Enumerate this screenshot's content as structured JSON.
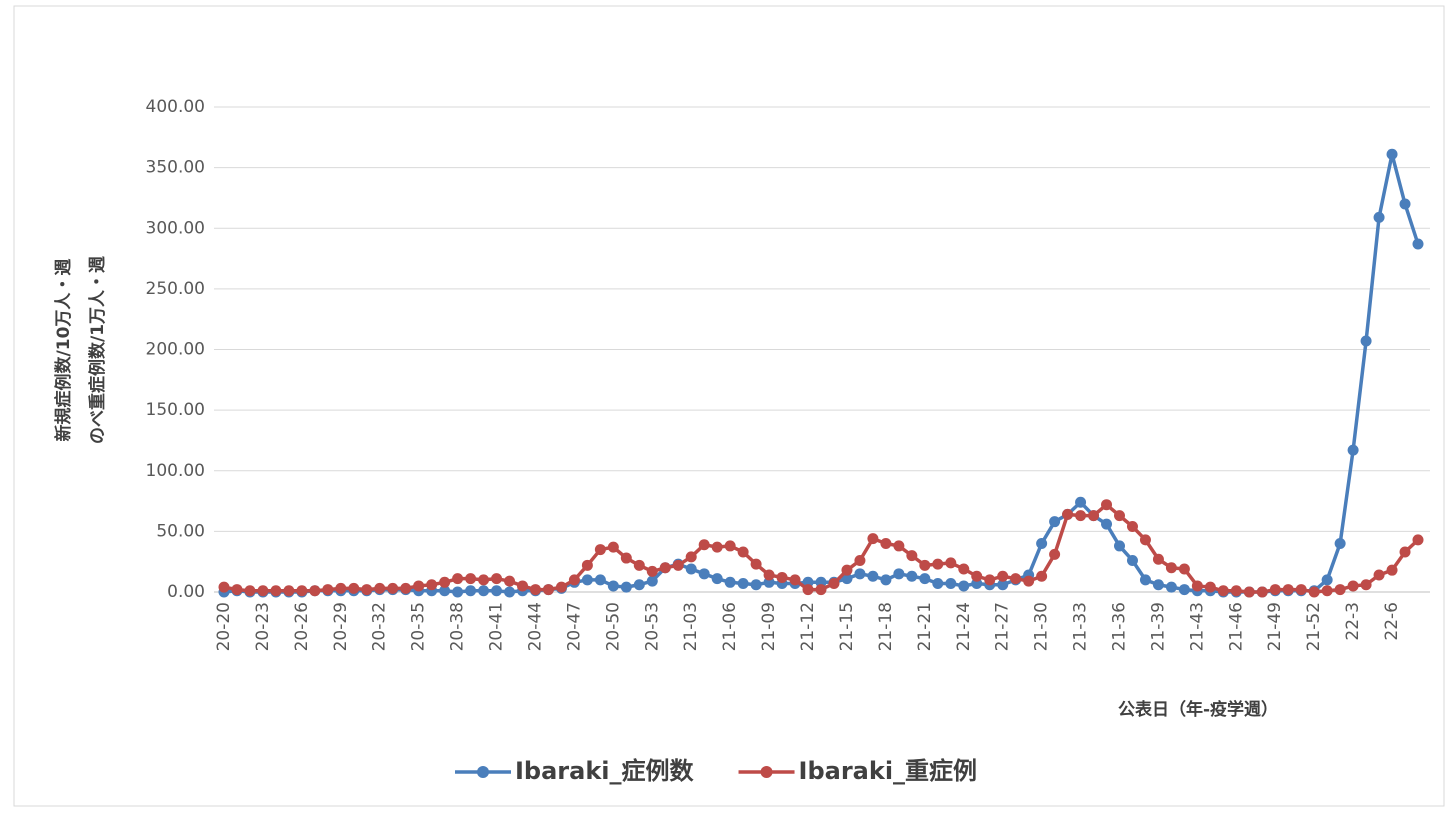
{
  "chart_data": {
    "type": "line",
    "x_label": "公表日（年-疫学週）",
    "y_label": [
      "新規症例数/10万人・週",
      "のべ重症例数/1万人・週"
    ],
    "categories": [
      "20-20",
      null,
      null,
      "20-23",
      null,
      null,
      "20-26",
      null,
      null,
      "20-29",
      null,
      null,
      "20-32",
      null,
      null,
      "20-35",
      null,
      null,
      "20-38",
      null,
      null,
      "20-41",
      null,
      null,
      "20-44",
      null,
      null,
      "20-47",
      null,
      null,
      "20-50",
      null,
      null,
      "20-53",
      null,
      null,
      "21-03",
      null,
      null,
      "21-06",
      null,
      null,
      "21-09",
      null,
      null,
      "21-12",
      null,
      null,
      "21-15",
      null,
      null,
      "21-18",
      null,
      null,
      "21-21",
      null,
      null,
      "21-24",
      null,
      null,
      "21-27",
      null,
      null,
      "21-30",
      null,
      null,
      "21-33",
      null,
      null,
      "21-36",
      null,
      null,
      "21-39",
      null,
      null,
      "21-43",
      null,
      null,
      "21-46",
      null,
      null,
      "21-49",
      null,
      null,
      "21-52",
      null,
      null,
      "22-3",
      null,
      null,
      "22-6",
      null,
      null
    ],
    "series": [
      {
        "name": "Ibaraki_症例数",
        "color": "#4a7ebb",
        "values": [
          0,
          1,
          0,
          0,
          0,
          0,
          0,
          1,
          1,
          1,
          1,
          1,
          2,
          2,
          2,
          1,
          1,
          1,
          0,
          1,
          1,
          1,
          0,
          1,
          1,
          2,
          3,
          8,
          10,
          10,
          5,
          4,
          6,
          9,
          20,
          23,
          19,
          15,
          11,
          8,
          7,
          6,
          8,
          7,
          7,
          8,
          8,
          8,
          11,
          15,
          13,
          10,
          15,
          13,
          11,
          7,
          7,
          5,
          7,
          6,
          6,
          10,
          14,
          40,
          58,
          64,
          74,
          63,
          56,
          38,
          26,
          10,
          6,
          4,
          2,
          1,
          1,
          0,
          0,
          0,
          0,
          1,
          1,
          1,
          1,
          10,
          40,
          117,
          207,
          309,
          361,
          320,
          287
        ]
      },
      {
        "name": "Ibaraki_重症例",
        "color": "#be4b48",
        "values": [
          4,
          2,
          1,
          1,
          1,
          1,
          1,
          1,
          2,
          3,
          3,
          2,
          3,
          3,
          3,
          5,
          6,
          8,
          11,
          11,
          10,
          11,
          9,
          5,
          2,
          2,
          4,
          10,
          22,
          35,
          37,
          28,
          22,
          17,
          20,
          22,
          29,
          39,
          37,
          38,
          33,
          23,
          14,
          12,
          10,
          2,
          2,
          7,
          18,
          26,
          44,
          40,
          38,
          30,
          22,
          23,
          24,
          19,
          13,
          10,
          13,
          11,
          9,
          13,
          31,
          64,
          63,
          63,
          72,
          63,
          54,
          43,
          27,
          20,
          19,
          5,
          4,
          1,
          1,
          0,
          0,
          2,
          2,
          2,
          0,
          1,
          2,
          5,
          6,
          14,
          18,
          33,
          43
        ]
      }
    ],
    "ylim": [
      0,
      400
    ],
    "yticks": [
      {
        "value": 0,
        "label": "0.00"
      },
      {
        "value": 50,
        "label": "50.00"
      },
      {
        "value": 100,
        "label": "100.00"
      },
      {
        "value": 150,
        "label": "150.00"
      },
      {
        "value": 200,
        "label": "200.00"
      },
      {
        "value": 250,
        "label": "250.00"
      },
      {
        "value": 300,
        "label": "300.00"
      },
      {
        "value": 350,
        "label": "350.00"
      },
      {
        "value": 400,
        "label": "400.00"
      }
    ],
    "grid": true,
    "legend": "bottom"
  }
}
